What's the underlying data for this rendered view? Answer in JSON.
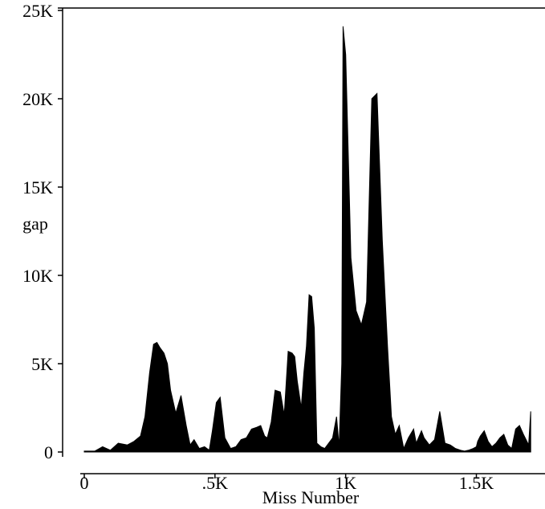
{
  "chart_data": {
    "type": "area",
    "xlabel": "Miss Number",
    "ylabel": "gap",
    "xlim": [
      0,
      1750
    ],
    "ylim": [
      0,
      25000
    ],
    "x_ticks": [
      {
        "value": 0,
        "label": "0"
      },
      {
        "value": 500,
        "label": ".5K"
      },
      {
        "value": 1000,
        "label": "1K"
      },
      {
        "value": 1500,
        "label": "1.5K"
      }
    ],
    "y_ticks": [
      {
        "value": 0,
        "label": "0"
      },
      {
        "value": 5000,
        "label": "5K"
      },
      {
        "value": 10000,
        "label": "10K"
      },
      {
        "value": 15000,
        "label": "15K"
      },
      {
        "value": 20000,
        "label": "20K"
      },
      {
        "value": 25000,
        "label": "25K"
      }
    ],
    "grid": false,
    "fill_color": "#000000",
    "x": [
      0,
      40,
      70,
      100,
      130,
      165,
      190,
      215,
      232,
      250,
      265,
      278,
      290,
      305,
      318,
      330,
      350,
      370,
      390,
      405,
      420,
      440,
      460,
      478,
      490,
      505,
      520,
      538,
      560,
      580,
      600,
      620,
      640,
      660,
      675,
      690,
      700,
      715,
      730,
      750,
      765,
      780,
      795,
      805,
      815,
      830,
      840,
      850,
      860,
      870,
      880,
      890,
      905,
      920,
      930,
      950,
      965,
      975,
      985,
      990,
      1000,
      1020,
      1040,
      1060,
      1080,
      1100,
      1120,
      1140,
      1160,
      1175,
      1190,
      1205,
      1222,
      1240,
      1260,
      1270,
      1290,
      1300,
      1320,
      1340,
      1360,
      1380,
      1400,
      1410,
      1420,
      1440,
      1455,
      1470,
      1488,
      1500,
      1505,
      1515,
      1530,
      1545,
      1560,
      1575,
      1590,
      1605,
      1620,
      1635,
      1650,
      1665,
      1680,
      1690,
      1700,
      1708
    ],
    "y": [
      50,
      50,
      300,
      100,
      500,
      400,
      600,
      900,
      2000,
      4500,
      6100,
      6200,
      5900,
      5600,
      5000,
      3500,
      2200,
      3200,
      1500,
      400,
      700,
      200,
      300,
      100,
      1200,
      2800,
      3100,
      800,
      200,
      300,
      700,
      800,
      1300,
      1400,
      1500,
      900,
      800,
      1700,
      3500,
      3400,
      2100,
      5700,
      5600,
      5400,
      4000,
      2500,
      4500,
      6000,
      8900,
      8800,
      7000,
      500,
      300,
      200,
      400,
      800,
      2000,
      300,
      5000,
      24100,
      22500,
      11000,
      8000,
      7200,
      8500,
      20000,
      20300,
      12000,
      6000,
      2000,
      1000,
      1500,
      200,
      800,
      1300,
      500,
      1200,
      800,
      400,
      700,
      2300,
      500,
      400,
      300,
      200,
      100,
      50,
      100,
      200,
      300,
      600,
      900,
      1200,
      600,
      300,
      500,
      800,
      1000,
      400,
      200,
      1300,
      1500,
      1000,
      700,
      400,
      2300
    ]
  }
}
